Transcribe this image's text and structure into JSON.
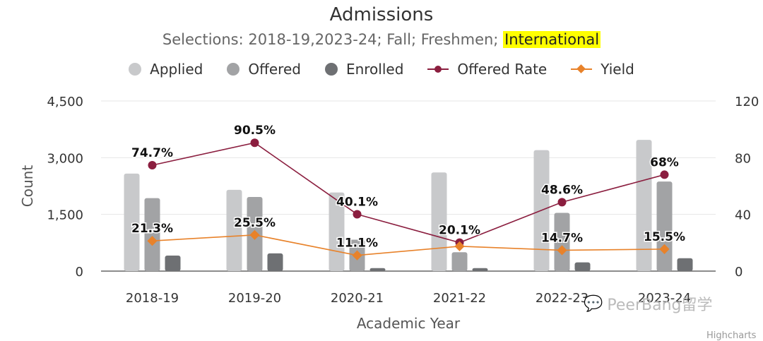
{
  "header": {
    "title": "Admissions",
    "subtitle_prefix": "Selections: 2018-19,2023-24; Fall; Freshmen; ",
    "subtitle_highlight": "International"
  },
  "watermark": {
    "text": "PeerBang留学",
    "icon": "wechat-icon"
  },
  "credit": "Highcharts",
  "colors": {
    "applied": "#c8c9cb",
    "offered": "#a2a3a5",
    "enrolled": "#6e7073",
    "offered_rate": "#8b1e3f",
    "yield": "#e8822a",
    "highlight": "#ffff00"
  },
  "chart_data": {
    "type": "bar",
    "title": "Admissions",
    "subtitle": "Selections: 2018-19,2023-24; Fall; Freshmen; International",
    "xlabel": "Academic Year",
    "ylabel": "Count",
    "categories": [
      "2018-19",
      "2019-20",
      "2020-21",
      "2021-22",
      "2022-23",
      "2023-24"
    ],
    "ylim": [
      0,
      4500
    ],
    "yticks": [
      "0",
      "1,500",
      "3,000",
      "4,500"
    ],
    "y2lim": [
      0,
      120
    ],
    "y2ticks": [
      "0",
      "40",
      "80",
      "120"
    ],
    "legend_position": "top-center",
    "grid": true,
    "series": [
      {
        "name": "Applied",
        "type": "bar",
        "values": [
          2580,
          2150,
          2080,
          2610,
          3200,
          3470
        ]
      },
      {
        "name": "Offered",
        "type": "bar",
        "values": [
          1930,
          1960,
          830,
          500,
          1540,
          2370
        ]
      },
      {
        "name": "Enrolled",
        "type": "bar",
        "values": [
          410,
          470,
          80,
          80,
          230,
          340
        ]
      },
      {
        "name": "Offered Rate",
        "type": "line",
        "axis": "right",
        "values": [
          74.7,
          90.5,
          40.1,
          20.1,
          48.6,
          68
        ],
        "labels": [
          "74.7%",
          "90.5%",
          "40.1%",
          "20.1%",
          "48.6%",
          "68%"
        ]
      },
      {
        "name": "Yield",
        "type": "line",
        "axis": "right",
        "values": [
          21.3,
          25.5,
          11.1,
          17.5,
          14.7,
          15.5
        ],
        "labels": [
          "21.3%",
          "25.5%",
          "11.1%",
          "",
          "14.7%",
          "15.5%"
        ]
      }
    ]
  }
}
